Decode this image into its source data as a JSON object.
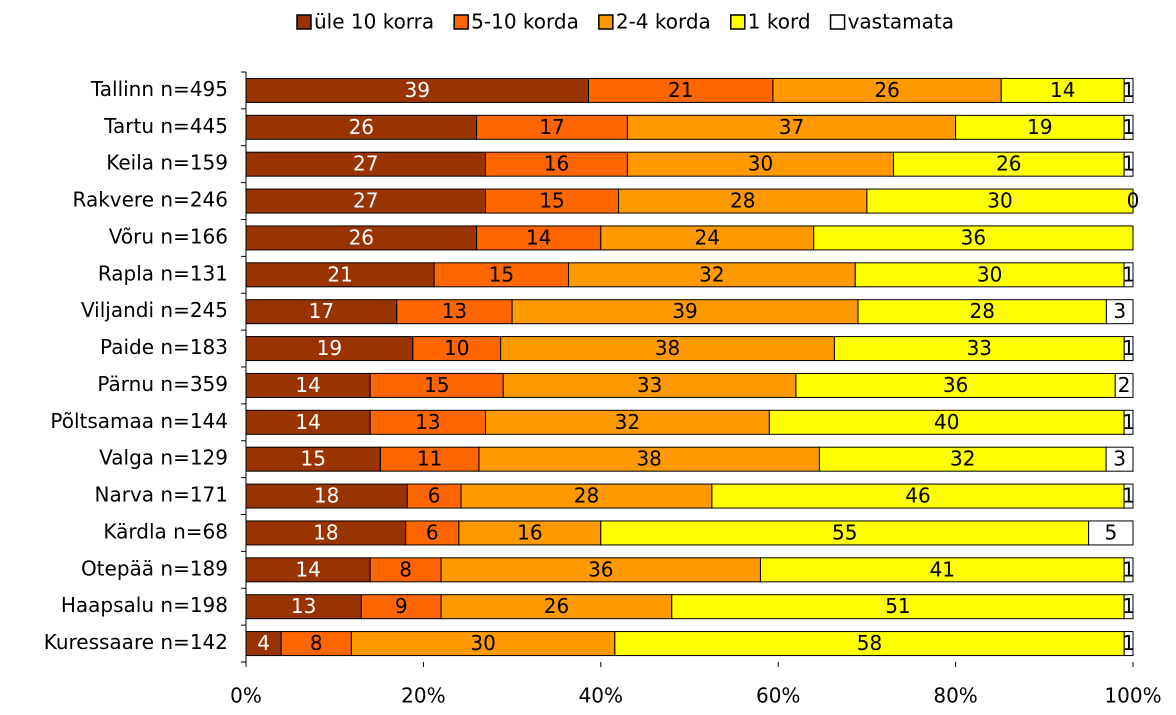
{
  "chart_data": {
    "type": "bar",
    "orientation": "horizontal",
    "stack": "percent",
    "categories": [
      "Tallinn n=495",
      "Tartu n=445",
      "Keila n=159",
      "Rakvere n=246",
      "Võru n=166",
      "Rapla n=131",
      "Viljandi n=245",
      "Paide n=183",
      "Pärnu n=359",
      "Põltsamaa n=144",
      "Valga n=129",
      "Narva n=171",
      "Kärdla n=68",
      "Otepää n=189",
      "Haapsalu n=198",
      "Kuressaare n=142"
    ],
    "series": [
      {
        "name": "üle 10 korra",
        "color": "#993300",
        "label_color": "#ffffff",
        "values": [
          39,
          26,
          27,
          27,
          26,
          21,
          17,
          19,
          14,
          14,
          15,
          18,
          18,
          14,
          13,
          4
        ]
      },
      {
        "name": "5-10 korda",
        "color": "#ff6600",
        "label_color": "#000000",
        "values": [
          21,
          17,
          16,
          15,
          14,
          15,
          13,
          10,
          15,
          13,
          11,
          6,
          6,
          8,
          9,
          8
        ]
      },
      {
        "name": "2-4 korda",
        "color": "#ff9900",
        "label_color": "#000000",
        "values": [
          26,
          37,
          30,
          28,
          24,
          32,
          39,
          38,
          33,
          32,
          38,
          28,
          16,
          36,
          26,
          30
        ]
      },
      {
        "name": "1 kord",
        "color": "#ffff00",
        "label_color": "#000000",
        "values": [
          14,
          19,
          26,
          30,
          36,
          30,
          28,
          33,
          36,
          40,
          32,
          46,
          55,
          41,
          51,
          58
        ]
      },
      {
        "name": "vastamata",
        "color": "#ffffff",
        "label_color": "#000000",
        "values": [
          1,
          1,
          1,
          0,
          null,
          1,
          3,
          1,
          2,
          1,
          3,
          1,
          5,
          1,
          1,
          1
        ]
      }
    ],
    "xlim": [
      0,
      100
    ],
    "xticks": [
      {
        "value": 0,
        "label": "0%"
      },
      {
        "value": 20,
        "label": "20%"
      },
      {
        "value": 40,
        "label": "40%"
      },
      {
        "value": 60,
        "label": "60%"
      },
      {
        "value": 80,
        "label": "80%"
      },
      {
        "value": 100,
        "label": "100%"
      }
    ],
    "legend": "top"
  }
}
